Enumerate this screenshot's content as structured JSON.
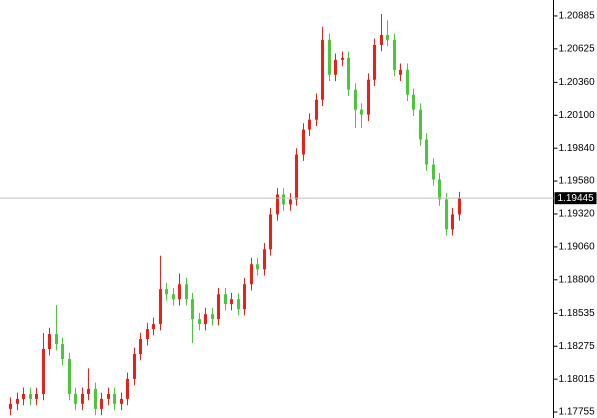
{
  "chart_data": {
    "type": "candlestick",
    "up_color": "#e8201a",
    "down_color": "#4cc63a",
    "ylim": [
      1.17708,
      1.21011
    ],
    "yticks": [
      {
        "value": 1.20885,
        "label": "1.20885"
      },
      {
        "value": 1.20625,
        "label": "1.20625"
      },
      {
        "value": 1.2036,
        "label": "1.20360"
      },
      {
        "value": 1.201,
        "label": "1.20100"
      },
      {
        "value": 1.1984,
        "label": "1.19840"
      },
      {
        "value": 1.1958,
        "label": "1.19580"
      },
      {
        "value": 1.1932,
        "label": "1.19320"
      },
      {
        "value": 1.1906,
        "label": "1.19060"
      },
      {
        "value": 1.188,
        "label": "1.18800"
      },
      {
        "value": 1.18535,
        "label": "1.18535"
      },
      {
        "value": 1.18275,
        "label": "1.18275"
      },
      {
        "value": 1.18015,
        "label": "1.18015"
      },
      {
        "value": 1.17755,
        "label": "1.17755"
      }
    ],
    "current_price": 1.19445,
    "open": [
      1.1778,
      1.1782,
      1.17859,
      1.17898,
      1.17859,
      1.17898,
      1.18253,
      1.18371,
      1.18292,
      1.18174,
      1.17898,
      1.1782,
      1.17898,
      1.17938,
      1.1778,
      1.17859,
      1.17898,
      1.1782,
      1.17859,
      1.18017,
      1.18214,
      1.18332,
      1.18411,
      1.1845,
      1.18726,
      1.18686,
      1.18647,
      1.18765,
      1.18647,
      1.18489,
      1.1845,
      1.18529,
      1.18489,
      1.18686,
      1.18608,
      1.18647,
      1.18568,
      1.18765,
      1.18923,
      1.18883,
      1.19041,
      1.19317,
      1.19474,
      1.19396,
      1.19435,
      1.1979,
      1.19987,
      1.20065,
      1.20223,
      1.20696,
      1.2042,
      1.20538,
      1.20554,
      1.20302,
      1.20144,
      1.20105,
      1.20381,
      1.20656,
      1.20735,
      1.20696,
      1.2042,
      1.20459,
      1.20262,
      1.20144,
      1.19908,
      1.19711,
      1.19593,
      1.19435,
      1.19199,
      1.19317
    ],
    "high": [
      1.1787,
      1.17909,
      1.17948,
      1.17948,
      1.17948,
      1.1838,
      1.18421,
      1.186,
      1.18342,
      1.18224,
      1.17948,
      1.17948,
      1.181,
      1.17988,
      1.17909,
      1.17948,
      1.17948,
      1.17909,
      1.18067,
      1.18264,
      1.18382,
      1.18461,
      1.185,
      1.1899,
      1.18776,
      1.18736,
      1.1885,
      1.18815,
      1.18697,
      1.18539,
      1.18579,
      1.18579,
      1.18736,
      1.18736,
      1.18697,
      1.18697,
      1.18815,
      1.18973,
      1.18973,
      1.19091,
      1.19367,
      1.19524,
      1.19524,
      1.19485,
      1.1984,
      1.20037,
      1.20115,
      1.20273,
      1.208,
      1.20746,
      1.20588,
      1.20604,
      1.20604,
      1.20352,
      1.20194,
      1.20431,
      1.20706,
      1.209,
      1.2085,
      1.20746,
      1.20509,
      1.20509,
      1.20312,
      1.20194,
      1.19958,
      1.19761,
      1.19643,
      1.19485,
      1.19367,
      1.19495
    ],
    "low": [
      1.1773,
      1.1777,
      1.17809,
      1.17809,
      1.17809,
      1.17848,
      1.18203,
      1.18242,
      1.18124,
      1.17848,
      1.1777,
      1.1777,
      1.17848,
      1.1773,
      1.1773,
      1.17809,
      1.1777,
      1.1777,
      1.17809,
      1.17967,
      1.18164,
      1.18282,
      1.18361,
      1.184,
      1.18636,
      1.18597,
      1.18597,
      1.18597,
      1.183,
      1.184,
      1.184,
      1.18439,
      1.18439,
      1.18558,
      1.18558,
      1.18518,
      1.18518,
      1.18715,
      1.18833,
      1.18833,
      1.18991,
      1.19267,
      1.19346,
      1.19346,
      1.19385,
      1.1974,
      1.19937,
      1.20015,
      1.20173,
      1.2037,
      1.2037,
      1.20488,
      1.20252,
      1.2,
      1.2,
      1.20055,
      1.20331,
      1.20606,
      1.20646,
      1.20409,
      1.2037,
      1.20212,
      1.20094,
      1.19858,
      1.19661,
      1.19543,
      1.19385,
      1.19149,
      1.19149,
      1.19267
    ],
    "close": [
      1.1782,
      1.17859,
      1.17898,
      1.17859,
      1.17898,
      1.18253,
      1.18371,
      1.18292,
      1.18174,
      1.17898,
      1.1782,
      1.17898,
      1.17938,
      1.1778,
      1.17859,
      1.17898,
      1.1782,
      1.17859,
      1.18017,
      1.18214,
      1.18332,
      1.18411,
      1.1845,
      1.18726,
      1.18686,
      1.18647,
      1.18765,
      1.18647,
      1.18489,
      1.1845,
      1.18529,
      1.18489,
      1.18686,
      1.18608,
      1.18647,
      1.18568,
      1.18765,
      1.18923,
      1.18883,
      1.19041,
      1.19317,
      1.19474,
      1.19396,
      1.19435,
      1.1979,
      1.19987,
      1.20065,
      1.20223,
      1.20696,
      1.2042,
      1.20538,
      1.20554,
      1.20302,
      1.20144,
      1.20105,
      1.20381,
      1.20656,
      1.20735,
      1.20696,
      1.20459,
      1.20459,
      1.20262,
      1.20144,
      1.19908,
      1.19711,
      1.19593,
      1.19435,
      1.19199,
      1.19317,
      1.19445
    ]
  }
}
